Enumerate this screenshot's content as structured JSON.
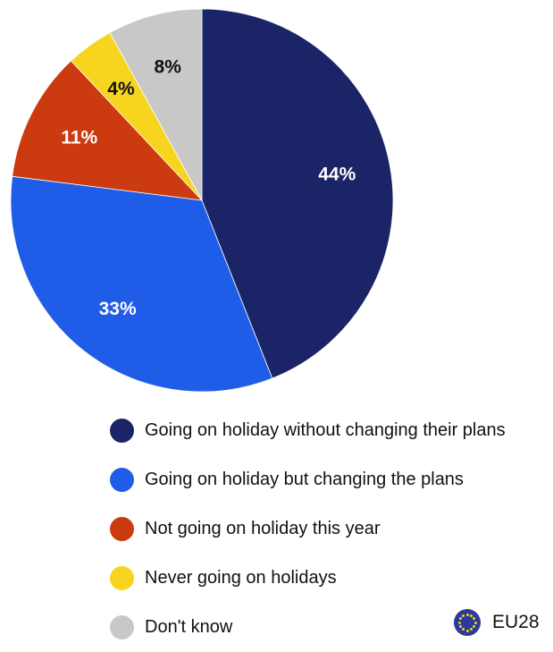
{
  "chart_data": {
    "type": "pie",
    "slices": [
      {
        "label": "Going on holiday without changing their plans",
        "value": 44,
        "display": "44%",
        "color": "#1a2466",
        "label_color": "#ffffff"
      },
      {
        "label": "Going on holiday but changing the plans",
        "value": 33,
        "display": "33%",
        "color": "#1f5ce8",
        "label_color": "#ffffff"
      },
      {
        "label": "Not going on holiday this year",
        "value": 11,
        "display": "11%",
        "color": "#cc3a10",
        "label_color": "#ffffff"
      },
      {
        "label": "Never going on holidays",
        "value": 4,
        "display": "4%",
        "color": "#f7d51e",
        "label_color": "#111111"
      },
      {
        "label": "Don't know",
        "value": 8,
        "display": "8%",
        "color": "#c8c8c8",
        "label_color": "#111111"
      }
    ],
    "legend_position": "bottom",
    "start_angle": "12 o'clock, clockwise"
  },
  "scope": {
    "label": "EU28",
    "icon": "eu-flag-icon"
  }
}
